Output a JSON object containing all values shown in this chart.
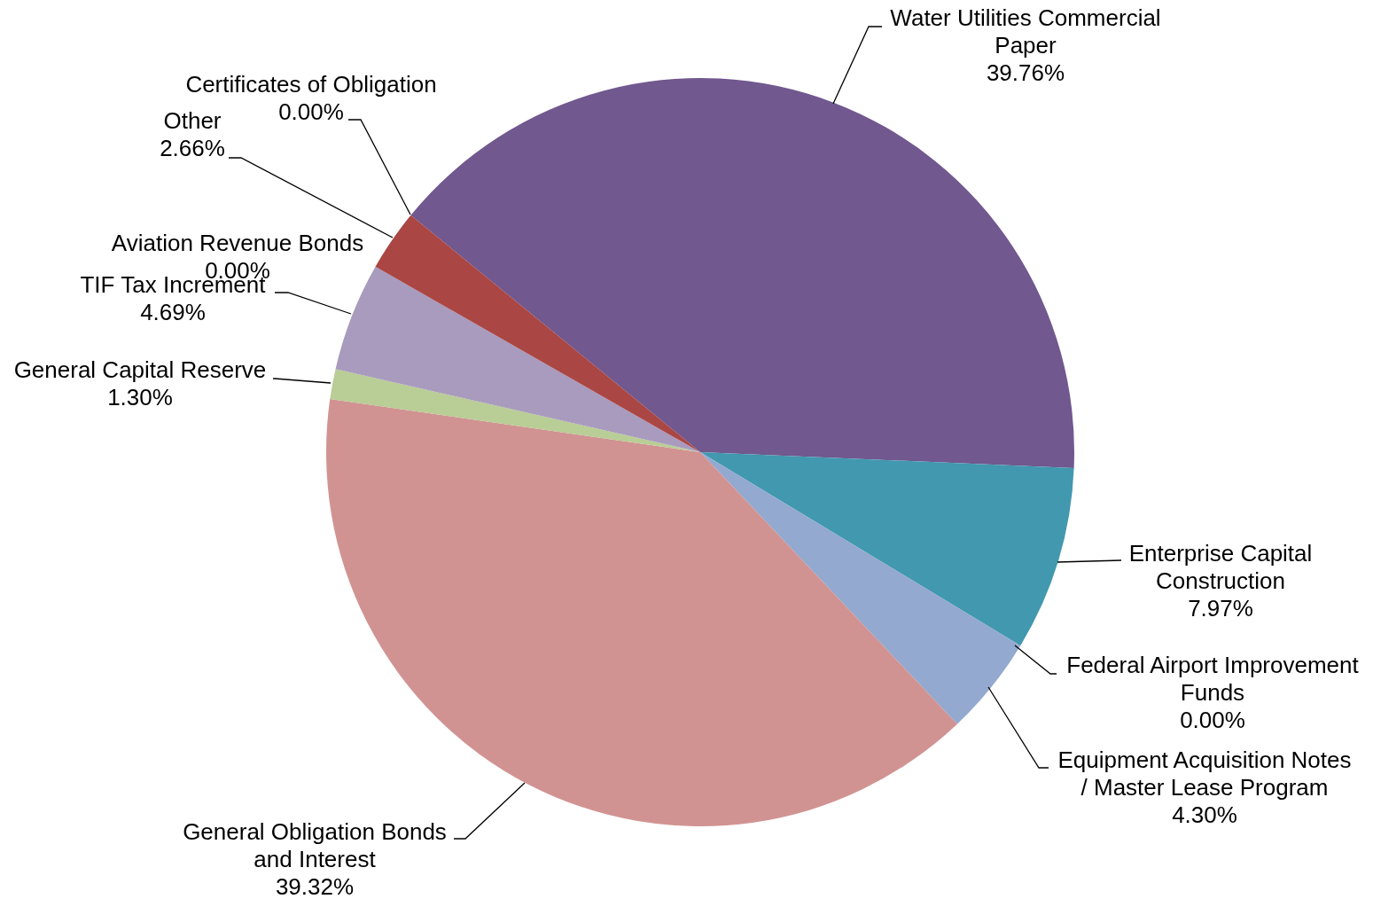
{
  "chart_data": {
    "type": "pie",
    "categories": [
      "Water Utilities Commercial Paper",
      "Enterprise Capital Construction",
      "Federal Airport Improvement Funds",
      "Equipment Acquisition Notes / Master Lease Program",
      "General Obligation Bonds and Interest",
      "General Capital Reserve",
      "TIF Tax Increment",
      "Aviation Revenue Bonds",
      "Other",
      "Certificates of Obligation"
    ],
    "values": [
      39.76,
      7.97,
      0,
      4.3,
      39.32,
      1.3,
      4.69,
      0,
      2.66,
      0
    ],
    "colors": [
      "#71588f",
      "#4198af",
      "#db843d",
      "#93a9cf",
      "#d19392",
      "#b9cd96",
      "#a99bbd",
      "#4572a7",
      "#aa4643",
      "#89a54e"
    ],
    "value_labels": [
      "39.76%",
      "7.97%",
      "0.00%",
      "4.30%",
      "39.32%",
      "1.30%",
      "4.69%",
      "0.00%",
      "2.66%",
      "0.00%"
    ]
  }
}
